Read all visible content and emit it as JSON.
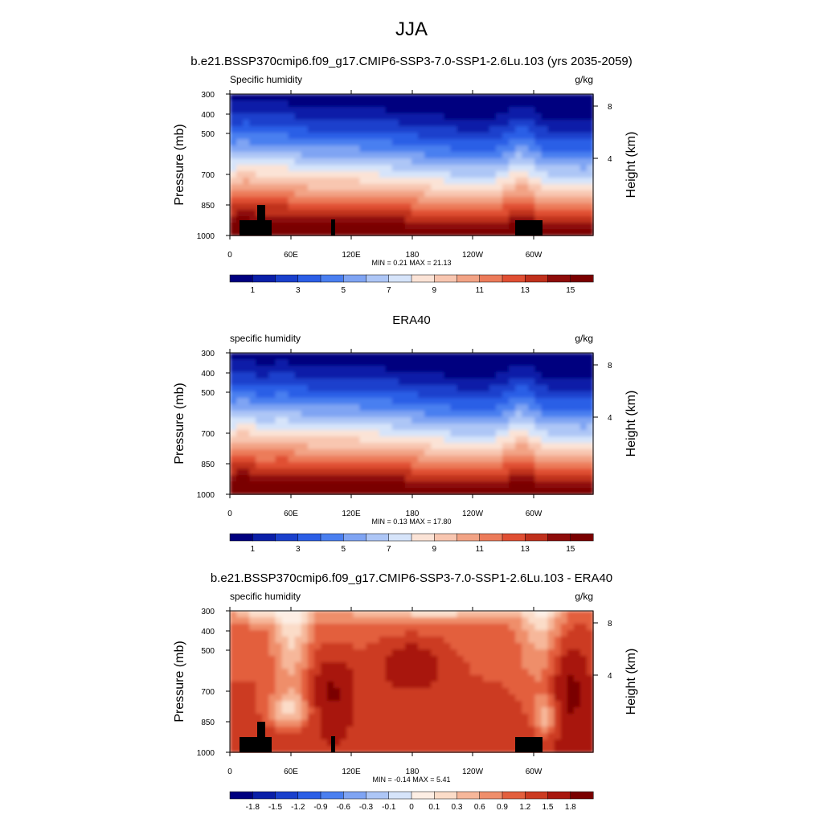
{
  "figure_title": "JJA",
  "colors": {
    "sequential": [
      "#00007f",
      "#0a1fa8",
      "#1a40cc",
      "#2b5ee6",
      "#4a7ff0",
      "#7fa4f3",
      "#adc6f6",
      "#d6e4fa",
      "#fbe3d6",
      "#f8c6b0",
      "#f2a385",
      "#ec7b5a",
      "#e04f33",
      "#c0301c",
      "#8e0c0a",
      "#7a0000"
    ],
    "diverging": [
      "#00007f",
      "#0a1fa8",
      "#1a40cc",
      "#2b5ee6",
      "#4a7ff0",
      "#7fa4f3",
      "#adc6f6",
      "#d6e4fa",
      "#fdeee4",
      "#fbdcc8",
      "#f6b79a",
      "#ef8e6b",
      "#e35f3d",
      "#cc3b21",
      "#a8170e",
      "#7a0000"
    ],
    "terrain": "#000000"
  },
  "chart_data": [
    {
      "type": "heatmap",
      "title": "b.e21.BSSP370cmip6.f09_g17.CMIP6-SSP3-7.0-SSP1-2.6Lu.103 (yrs 2035-2059)",
      "left_label": "Specific humidity",
      "right_label": "g/kg",
      "ylabel": "Pressure (mb)",
      "ylabel_right": "Height (km)",
      "x_ticks": [
        "0",
        "60E",
        "120E",
        "180",
        "120W",
        "60W"
      ],
      "y_ticks": [
        "300",
        "400",
        "500",
        "700",
        "850",
        "1000"
      ],
      "y_right_ticks": [
        "8",
        "4"
      ],
      "stats": "MIN =   0.21  MAX =  21.13",
      "colorbar_labels": [
        "1",
        "3",
        "5",
        "7",
        "9",
        "11",
        "13",
        "15"
      ],
      "palette": "sequential",
      "show_terrain": true
    },
    {
      "type": "heatmap",
      "title": "ERA40",
      "left_label": "specific humidity",
      "right_label": "g/kg",
      "ylabel": "Pressure (mb)",
      "ylabel_right": "Height (km)",
      "x_ticks": [
        "0",
        "60E",
        "120E",
        "180",
        "120W",
        "60W"
      ],
      "y_ticks": [
        "300",
        "400",
        "500",
        "700",
        "850",
        "1000"
      ],
      "y_right_ticks": [
        "8",
        "4"
      ],
      "stats": "MIN =   0.13  MAX =  17.80",
      "colorbar_labels": [
        "1",
        "3",
        "5",
        "7",
        "9",
        "11",
        "13",
        "15"
      ],
      "palette": "sequential",
      "show_terrain": false
    },
    {
      "type": "heatmap",
      "title": "b.e21.BSSP370cmip6.f09_g17.CMIP6-SSP3-7.0-SSP1-2.6Lu.103 - ERA40",
      "left_label": "specific humidity",
      "right_label": "g/kg",
      "ylabel": "Pressure (mb)",
      "ylabel_right": "Height (km)",
      "x_ticks": [
        "0",
        "60E",
        "120E",
        "180",
        "120W",
        "60W"
      ],
      "y_ticks": [
        "300",
        "400",
        "500",
        "700",
        "850",
        "1000"
      ],
      "y_right_ticks": [
        "8",
        "4"
      ],
      "stats": "MIN =  -0.14  MAX =   5.41",
      "colorbar_labels": [
        "-1.8",
        "-1.5",
        "-1.2",
        "-0.9",
        "-0.6",
        "-0.3",
        "-0.1",
        "0",
        "0.1",
        "0.3",
        "0.6",
        "0.9",
        "1.2",
        "1.5",
        "1.8"
      ],
      "palette": "diverging",
      "show_terrain": true
    }
  ]
}
